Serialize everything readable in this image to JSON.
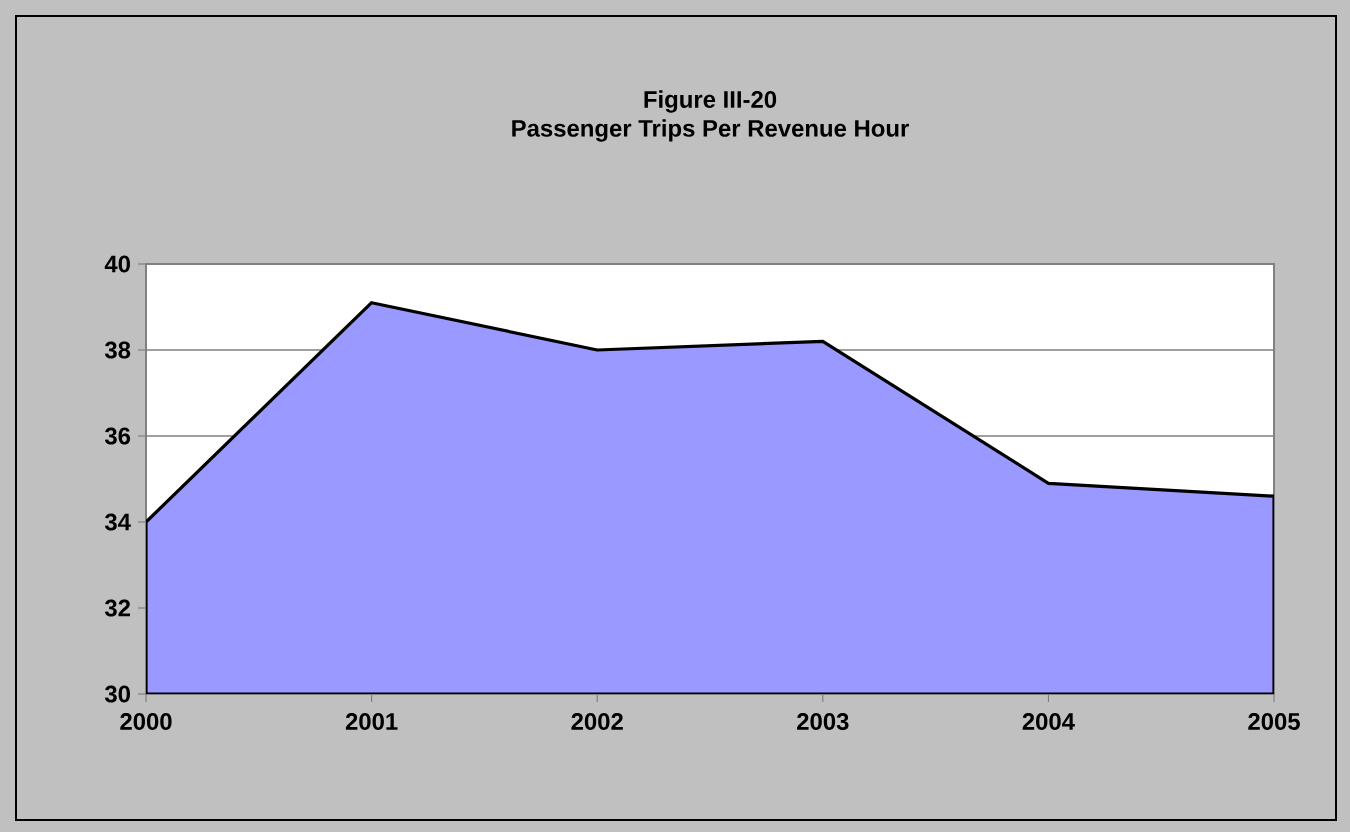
{
  "chart_data": {
    "type": "area",
    "title": "Figure III-20",
    "subtitle": "Passenger Trips Per Revenue Hour",
    "categories": [
      "2000",
      "2001",
      "2002",
      "2003",
      "2004",
      "2005"
    ],
    "values": [
      34.0,
      39.1,
      38.0,
      38.2,
      34.9,
      34.6
    ],
    "color": "#9999ff",
    "ylim": [
      30,
      40
    ],
    "yticks": [
      30,
      32,
      34,
      36,
      38,
      40
    ],
    "grid": "y"
  }
}
